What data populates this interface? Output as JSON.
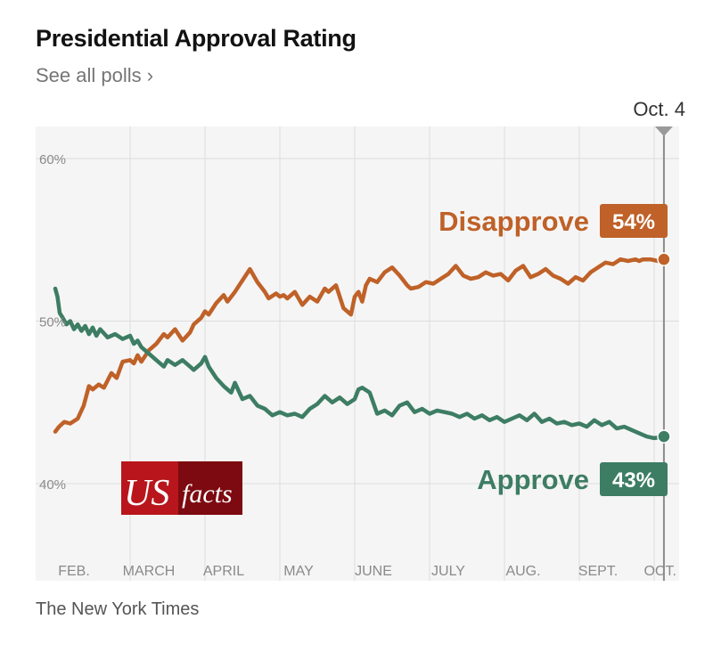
{
  "header": {
    "title": "Presidential Approval Rating",
    "link_label": "See all polls",
    "link_icon": "chevron-right-icon"
  },
  "footer": {
    "source": "The New York Times"
  },
  "logo": {
    "text_us": "US",
    "text_facts": "facts"
  },
  "colors": {
    "approve": "#3d7d64",
    "disapprove": "#bf6128",
    "plot_bg": "#f5f5f5",
    "grid": "#dddddd",
    "logo_red": "#b8161c"
  },
  "chart_data": {
    "type": "line",
    "title": "Presidential Approval Rating",
    "xlabel": "",
    "ylabel": "",
    "ylim": [
      36,
      62
    ],
    "xlim": [
      0,
      8.3
    ],
    "yticks": [
      40,
      50,
      60
    ],
    "ytick_labels": [
      "40%",
      "50%",
      "60%"
    ],
    "x_month_ticks": [
      0.25,
      1.25,
      2.25,
      3.25,
      4.25,
      5.25,
      6.25,
      7.25,
      8.08
    ],
    "month_labels": [
      "FEB.",
      "MARCH",
      "APRIL",
      "MAY",
      "JUNE",
      "JULY",
      "AUG.",
      "SEPT.",
      "OCT."
    ],
    "month_gridlines": [
      1,
      2,
      3,
      4,
      5,
      6,
      7,
      8
    ],
    "grid": true,
    "current_date_label": "Oct. 4",
    "current_x": 8.13,
    "series": [
      {
        "name": "Disapprove",
        "end_label": "54%",
        "x": [
          0,
          0.05,
          0.12,
          0.2,
          0.3,
          0.38,
          0.45,
          0.5,
          0.58,
          0.65,
          0.75,
          0.82,
          0.9,
          1.0,
          1.05,
          1.1,
          1.15,
          1.25,
          1.35,
          1.45,
          1.5,
          1.6,
          1.7,
          1.8,
          1.85,
          1.95,
          2.0,
          2.05,
          2.15,
          2.25,
          2.3,
          2.4,
          2.5,
          2.6,
          2.7,
          2.8,
          2.85,
          2.95,
          3.0,
          3.05,
          3.1,
          3.2,
          3.3,
          3.4,
          3.5,
          3.6,
          3.65,
          3.75,
          3.85,
          3.95,
          4.0,
          4.05,
          4.1,
          4.15,
          4.2,
          4.3,
          4.4,
          4.5,
          4.6,
          4.7,
          4.75,
          4.85,
          4.95,
          5.05,
          5.15,
          5.25,
          5.35,
          5.45,
          5.55,
          5.65,
          5.75,
          5.85,
          5.95,
          6.05,
          6.15,
          6.25,
          6.35,
          6.45,
          6.55,
          6.65,
          6.75,
          6.85,
          6.95,
          7.05,
          7.15,
          7.25,
          7.35,
          7.45,
          7.55,
          7.65,
          7.75,
          7.8,
          7.85,
          7.95,
          8.05,
          8.13
        ],
        "y": [
          43.2,
          43.5,
          43.8,
          43.7,
          44.0,
          44.8,
          46.0,
          45.8,
          46.1,
          45.9,
          46.8,
          46.5,
          47.5,
          47.6,
          47.4,
          47.9,
          47.5,
          48.2,
          48.6,
          49.2,
          49.0,
          49.5,
          48.8,
          49.3,
          49.8,
          50.2,
          50.6,
          50.4,
          51.1,
          51.6,
          51.2,
          51.8,
          52.5,
          53.2,
          52.4,
          51.8,
          51.4,
          51.7,
          51.5,
          51.6,
          51.4,
          51.8,
          51.0,
          51.5,
          51.2,
          52.0,
          51.8,
          52.2,
          50.8,
          50.4,
          51.5,
          51.8,
          51.2,
          52.2,
          52.6,
          52.4,
          53.0,
          53.3,
          52.8,
          52.2,
          52.0,
          52.1,
          52.4,
          52.3,
          52.6,
          52.9,
          53.4,
          52.8,
          52.6,
          52.7,
          53.0,
          52.8,
          52.9,
          52.5,
          53.1,
          53.4,
          52.7,
          52.9,
          53.2,
          52.8,
          52.6,
          52.3,
          52.7,
          52.5,
          53.0,
          53.3,
          53.6,
          53.5,
          53.8,
          53.7,
          53.8,
          53.7,
          53.8,
          53.8,
          53.7,
          53.8
        ]
      },
      {
        "name": "Approve",
        "end_label": "43%",
        "x": [
          0,
          0.03,
          0.06,
          0.1,
          0.15,
          0.2,
          0.25,
          0.3,
          0.35,
          0.4,
          0.45,
          0.5,
          0.55,
          0.6,
          0.7,
          0.8,
          0.9,
          1.0,
          1.05,
          1.1,
          1.15,
          1.25,
          1.35,
          1.45,
          1.5,
          1.6,
          1.7,
          1.8,
          1.85,
          1.95,
          2.0,
          2.05,
          2.15,
          2.25,
          2.35,
          2.4,
          2.5,
          2.6,
          2.7,
          2.8,
          2.9,
          3.0,
          3.1,
          3.2,
          3.3,
          3.4,
          3.5,
          3.6,
          3.7,
          3.8,
          3.9,
          4.0,
          4.05,
          4.1,
          4.2,
          4.3,
          4.4,
          4.5,
          4.6,
          4.7,
          4.8,
          4.9,
          5.0,
          5.1,
          5.2,
          5.3,
          5.4,
          5.5,
          5.6,
          5.7,
          5.8,
          5.9,
          6.0,
          6.1,
          6.2,
          6.3,
          6.4,
          6.5,
          6.6,
          6.7,
          6.8,
          6.9,
          7.0,
          7.1,
          7.2,
          7.3,
          7.4,
          7.5,
          7.6,
          7.7,
          7.8,
          7.9,
          8.0,
          8.13
        ],
        "y": [
          52.0,
          51.5,
          50.5,
          50.2,
          49.8,
          50.0,
          49.5,
          49.8,
          49.4,
          49.7,
          49.2,
          49.6,
          49.1,
          49.5,
          49.0,
          49.2,
          48.9,
          49.1,
          48.6,
          48.8,
          48.4,
          48.0,
          47.6,
          47.2,
          47.6,
          47.3,
          47.6,
          47.2,
          47.0,
          47.4,
          47.8,
          47.2,
          46.5,
          46.0,
          45.6,
          46.2,
          45.2,
          45.4,
          44.8,
          44.6,
          44.2,
          44.4,
          44.2,
          44.3,
          44.1,
          44.6,
          44.9,
          45.4,
          45.0,
          45.3,
          44.9,
          45.2,
          45.8,
          45.9,
          45.6,
          44.3,
          44.5,
          44.2,
          44.8,
          45.0,
          44.4,
          44.6,
          44.3,
          44.5,
          44.4,
          44.3,
          44.1,
          44.3,
          44.0,
          44.2,
          43.9,
          44.1,
          43.8,
          44.0,
          44.2,
          43.9,
          44.3,
          43.8,
          44.0,
          43.7,
          43.8,
          43.6,
          43.7,
          43.5,
          43.9,
          43.6,
          43.8,
          43.4,
          43.5,
          43.3,
          43.1,
          42.9,
          42.8,
          42.9
        ]
      }
    ]
  }
}
